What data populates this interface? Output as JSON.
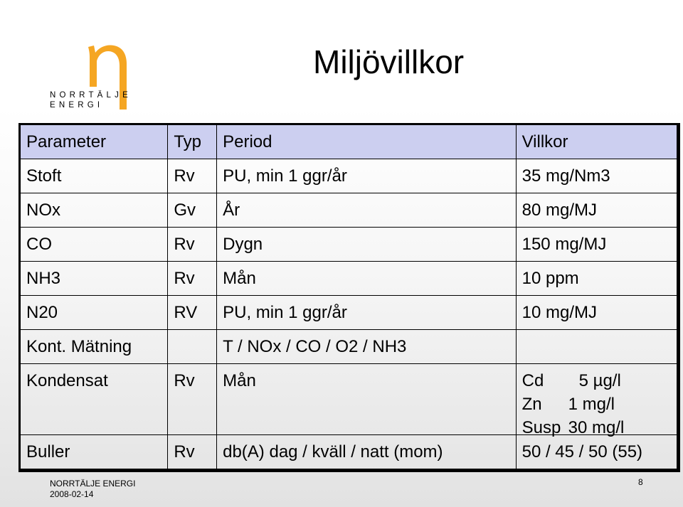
{
  "logo": {
    "line1": "NORRTÄLJE",
    "line2": "ENERGI",
    "color": "#f5a623"
  },
  "title": "Miljövillkor",
  "table": {
    "headers": [
      "Parameter",
      "Typ",
      "Period",
      "Villkor"
    ],
    "header_bg": "#cccff0",
    "rows": [
      [
        "Stoft",
        "Rv",
        "PU, min 1 ggr/år",
        "35 mg/Nm3"
      ],
      [
        "NOx",
        "Gv",
        "År",
        "80 mg/MJ"
      ],
      [
        "CO",
        "Rv",
        "Dygn",
        "150 mg/MJ"
      ],
      [
        "NH3",
        "Rv",
        "Mån",
        "10 ppm"
      ],
      [
        "N20",
        "RV",
        "PU, min 1 ggr/år",
        "10 mg/MJ"
      ],
      [
        "Kont. Mätning",
        "",
        "T / NOx / CO / O2 / NH3",
        ""
      ]
    ],
    "kondensat": {
      "parameter": "Kondensat",
      "typ": "Rv",
      "period": "Mån",
      "villkor": [
        {
          "k": "Cd",
          "v": "5 µg/l"
        },
        {
          "k": "Zn",
          "v": "1 mg/l"
        },
        {
          "k": "Susp",
          "v": "30 mg/l"
        }
      ]
    },
    "buller": [
      "Buller",
      "Rv",
      "db(A) dag / kväll / natt (mom)",
      "50 / 45 / 50 (55)"
    ]
  },
  "footer": {
    "company": "NORRTÄLJE ENERGI",
    "date": "2008-02-14",
    "page": "8"
  }
}
